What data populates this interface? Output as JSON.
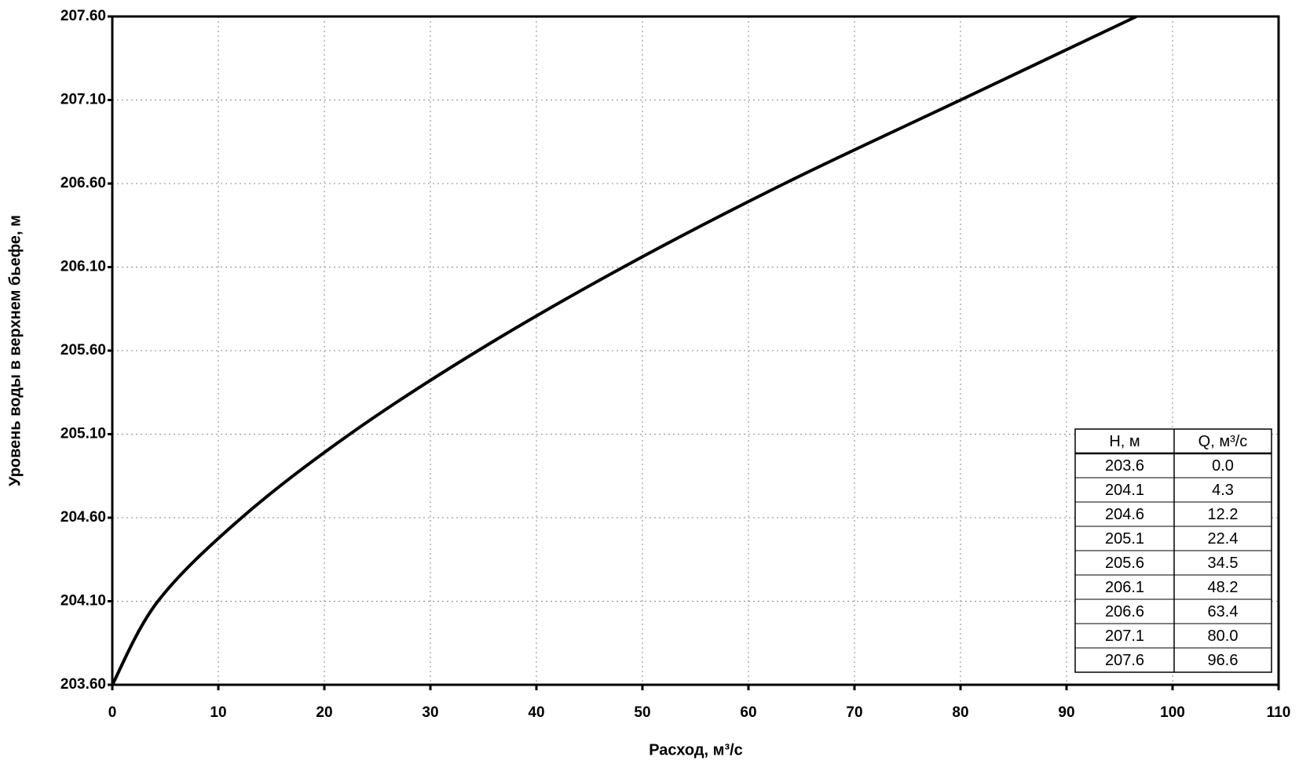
{
  "chart_data": {
    "type": "line",
    "x_label": "Расход, м³/с",
    "y_label": "Уровень воды в верхнем бьефе, м",
    "x": [
      0.0,
      4.3,
      12.2,
      22.4,
      34.5,
      48.2,
      63.4,
      80.0,
      96.6
    ],
    "series": [
      {
        "color": "#000000",
        "values": [
          203.6,
          204.1,
          204.6,
          205.1,
          205.6,
          206.1,
          206.6,
          207.1,
          207.6
        ]
      }
    ],
    "xlim": [
      0,
      110
    ],
    "xticks": [
      0,
      10,
      20,
      30,
      40,
      50,
      60,
      70,
      80,
      90,
      100,
      110
    ],
    "ylim": [
      203.6,
      207.6
    ],
    "yticks": [
      {
        "value": 203.6,
        "label": "203.60"
      },
      {
        "value": 204.1,
        "label": "204.10"
      },
      {
        "value": 204.6,
        "label": "204.60"
      },
      {
        "value": 205.1,
        "label": "205.10"
      },
      {
        "value": 205.6,
        "label": "205.60"
      },
      {
        "value": 206.1,
        "label": "206.10"
      },
      {
        "value": 206.6,
        "label": "206.60"
      },
      {
        "value": 207.1,
        "label": "207.10"
      },
      {
        "value": 207.6,
        "label": "207.60"
      }
    ],
    "grid": true,
    "table": {
      "columns": [
        "H, м",
        "Q, м³/с"
      ],
      "rows": [
        [
          "203.6",
          "0.0"
        ],
        [
          "204.1",
          "4.3"
        ],
        [
          "204.6",
          "12.2"
        ],
        [
          "205.1",
          "22.4"
        ],
        [
          "205.6",
          "34.5"
        ],
        [
          "206.1",
          "48.2"
        ],
        [
          "206.6",
          "63.4"
        ],
        [
          "207.1",
          "80.0"
        ],
        [
          "207.6",
          "96.6"
        ]
      ]
    }
  }
}
